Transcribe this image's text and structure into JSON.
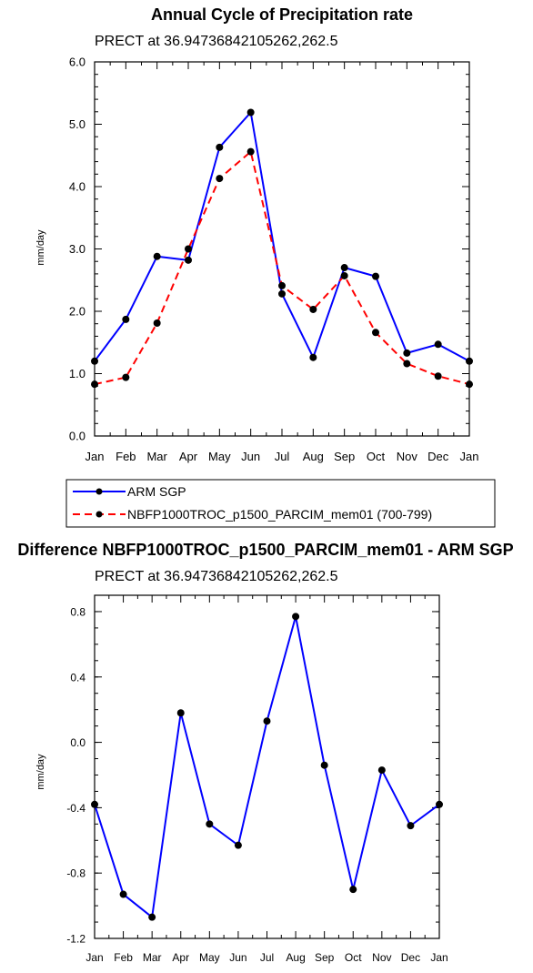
{
  "chart_data": [
    {
      "type": "line",
      "title": "Annual Cycle of Precipitation rate",
      "subtitle": "PRECT at 36.94736842105262,262.5",
      "ylabel": "mm/day",
      "ylim": [
        0,
        6
      ],
      "yticks": [
        "0.0",
        "1.0",
        "2.0",
        "3.0",
        "4.0",
        "5.0",
        "6.0"
      ],
      "categories": [
        "Jan",
        "Feb",
        "Mar",
        "Apr",
        "May",
        "Jun",
        "Jul",
        "Aug",
        "Sep",
        "Oct",
        "Nov",
        "Dec",
        "Jan"
      ],
      "series": [
        {
          "name": "ARM SGP",
          "color": "#0000ff",
          "dash": "solid",
          "values": [
            1.2,
            1.87,
            2.88,
            2.82,
            4.63,
            5.19,
            2.28,
            1.26,
            2.7,
            2.56,
            1.33,
            1.47,
            1.2
          ]
        },
        {
          "name": "NBFP1000TROC_p1500_PARCIM_mem01 (700-799)",
          "color": "#ff0000",
          "dash": "dashed",
          "values": [
            0.83,
            0.94,
            1.81,
            3.0,
            4.13,
            4.56,
            2.41,
            2.03,
            2.57,
            1.66,
            1.16,
            0.96,
            0.83
          ]
        }
      ]
    },
    {
      "type": "line",
      "title": "Difference NBFP1000TROC_p1500_PARCIM_mem01 - ARM SGP",
      "subtitle": "PRECT at 36.94736842105262,262.5",
      "ylabel": "mm/day",
      "ylim": [
        -1.2,
        0.9
      ],
      "yticks": [
        "-1.2",
        "-0.8",
        "-0.4",
        "0.0",
        "0.4",
        "0.8"
      ],
      "categories": [
        "Jan",
        "Feb",
        "Mar",
        "Apr",
        "May",
        "Jun",
        "Jul",
        "Aug",
        "Sep",
        "Oct",
        "Nov",
        "Dec",
        "Jan"
      ],
      "series": [
        {
          "color": "#0000ff",
          "dash": "solid",
          "values": [
            -0.38,
            -0.93,
            -1.07,
            0.18,
            -0.5,
            -0.63,
            0.13,
            0.77,
            -0.14,
            -0.9,
            -0.17,
            -0.51,
            -0.38
          ]
        }
      ]
    }
  ]
}
